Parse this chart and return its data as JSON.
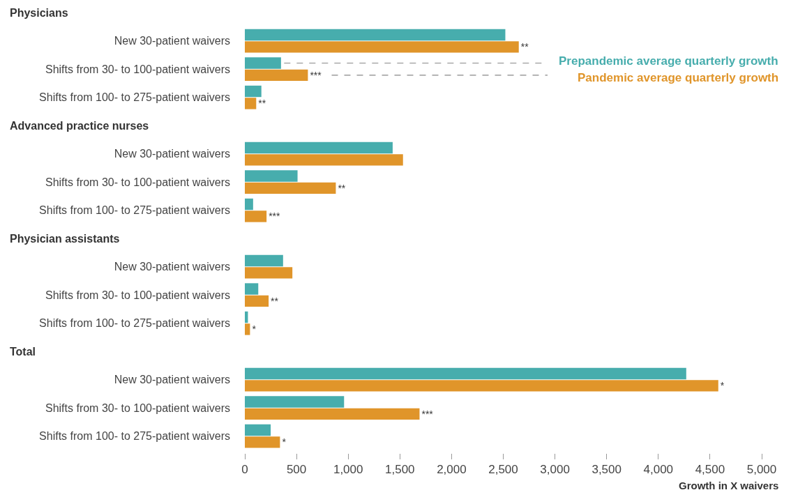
{
  "chart_data": {
    "type": "bar",
    "orientation": "horizontal",
    "xlabel": "Growth in X waivers",
    "annotations": [
      "Physicians",
      "Advanced practice nurses",
      "Physician assistants",
      "Total"
    ],
    "categories": [
      null,
      "New 30-patient waivers",
      "Shifts from 30- to 100-patient waivers",
      "Shifts from 100- to 275-patient waivers",
      null,
      "New 30-patient waivers",
      "Shifts from 30- to 100-patient waivers",
      "Shifts from 100- to 275-patient waivers",
      null,
      "New 30-patient waivers",
      "Shifts from 30- to 100-patient waivers",
      "Shifts from 100- to 275-patient waivers",
      null,
      "New 30-patient waivers",
      "Shifts from 30- to 100-patient waivers",
      "Shifts from 100- to 275-patient waivers"
    ],
    "series": [
      {
        "name": "Prepandemic average quarterly growth",
        "color": "#47adad",
        "values": [
          null,
          2520,
          350,
          160,
          null,
          1430,
          510,
          80,
          null,
          370,
          130,
          30,
          null,
          4270,
          960,
          250
        ]
      },
      {
        "name": "Pandemic average quarterly growth",
        "color": "#e0952a",
        "values": [
          null,
          2650,
          610,
          110,
          null,
          1530,
          880,
          210,
          null,
          460,
          230,
          50,
          null,
          4580,
          1690,
          340
        ],
        "value_labels": [
          null,
          "**",
          "***",
          "**",
          null,
          null,
          "**",
          "***",
          null,
          null,
          "**",
          "*",
          null,
          "*",
          "***",
          "*"
        ]
      }
    ],
    "xlim": [
      0,
      5000
    ],
    "xticks": [
      0,
      500,
      {
        "value": 1000,
        "label": "1,000"
      },
      {
        "value": 1500,
        "label": "1,500"
      },
      {
        "value": 2000,
        "label": "2,000"
      },
      {
        "value": 2500,
        "label": "2,500"
      },
      {
        "value": 3000,
        "label": "3,000"
      },
      {
        "value": 3500,
        "label": "3,500"
      },
      {
        "value": 4000,
        "label": "4,000"
      },
      {
        "value": 4500,
        "label": "4,500"
      },
      {
        "value": 5000,
        "label": "5,000"
      }
    ],
    "grid": false,
    "legend": false
  }
}
